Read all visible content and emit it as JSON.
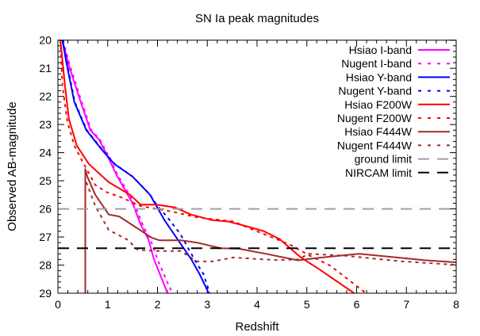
{
  "chart_data": {
    "type": "line",
    "title": "SN Ia peak magnitudes",
    "xlabel": "Redshift",
    "ylabel": "Observed AB-magnitude",
    "xlim": [
      0,
      8
    ],
    "ylim": [
      29,
      20
    ],
    "y_inverted": true,
    "grid": false,
    "legend_placement": "top-right",
    "xticks": [
      "0",
      "1",
      "2",
      "3",
      "4",
      "5",
      "6",
      "7",
      "8"
    ],
    "yticks": [
      "20",
      "21",
      "22",
      "23",
      "24",
      "25",
      "26",
      "27",
      "28",
      "29"
    ],
    "series": [
      {
        "name": "Hsiao I-band",
        "color": "#ff00ff",
        "dash": "solid",
        "points": [
          [
            0.09,
            20
          ],
          [
            0.22,
            20.9
          ],
          [
            0.43,
            22.05
          ],
          [
            0.65,
            23.2
          ],
          [
            0.83,
            23.55
          ],
          [
            0.99,
            24.1
          ],
          [
            1.18,
            24.8
          ],
          [
            1.34,
            25.3
          ],
          [
            1.5,
            25.8
          ],
          [
            1.66,
            26.55
          ],
          [
            1.82,
            27.1
          ],
          [
            1.93,
            27.8
          ],
          [
            2.09,
            28.5
          ],
          [
            2.2,
            29
          ]
        ]
      },
      {
        "name": "Nugent I-band",
        "color": "#ff00ff",
        "dash": "dotted",
        "points": [
          [
            0.1,
            20
          ],
          [
            0.24,
            20.9
          ],
          [
            0.45,
            22.05
          ],
          [
            0.67,
            23.2
          ],
          [
            0.85,
            23.55
          ],
          [
            1.01,
            24.1
          ],
          [
            1.2,
            24.8
          ],
          [
            1.37,
            25.3
          ],
          [
            1.53,
            25.8
          ],
          [
            1.7,
            26.55
          ],
          [
            1.88,
            27.2
          ],
          [
            2.0,
            27.8
          ],
          [
            2.17,
            28.5
          ],
          [
            2.3,
            29
          ]
        ]
      },
      {
        "name": "Hsiao Y-band",
        "color": "#0000ff",
        "dash": "solid",
        "points": [
          [
            0.09,
            20
          ],
          [
            0.17,
            20.8
          ],
          [
            0.33,
            22.2
          ],
          [
            0.57,
            23.2
          ],
          [
            0.86,
            23.85
          ],
          [
            1.13,
            24.4
          ],
          [
            1.5,
            24.85
          ],
          [
            1.85,
            25.5
          ],
          [
            1.98,
            25.9
          ],
          [
            2.14,
            26.4
          ],
          [
            2.41,
            27.1
          ],
          [
            2.68,
            27.8
          ],
          [
            2.84,
            28.3
          ],
          [
            3.03,
            29
          ]
        ]
      },
      {
        "name": "Nugent Y-band",
        "color": "#0000ff",
        "dash": "dotted",
        "points": [
          [
            0.1,
            20
          ],
          [
            0.18,
            20.8
          ],
          [
            0.34,
            22.2
          ],
          [
            0.58,
            23.2
          ],
          [
            0.87,
            23.85
          ],
          [
            1.14,
            24.4
          ],
          [
            1.5,
            24.85
          ],
          [
            1.85,
            25.5
          ],
          [
            2.0,
            25.9
          ],
          [
            2.2,
            26.3
          ],
          [
            2.46,
            26.9
          ],
          [
            2.79,
            27.95
          ],
          [
            2.92,
            28.3
          ],
          [
            3.05,
            29
          ]
        ]
      },
      {
        "name": "Hsiao F200W",
        "color": "#ff0000",
        "dash": "solid",
        "points": [
          [
            0.05,
            20
          ],
          [
            0.14,
            21.6
          ],
          [
            0.22,
            22.8
          ],
          [
            0.38,
            23.75
          ],
          [
            0.62,
            24.4
          ],
          [
            1.02,
            25.05
          ],
          [
            1.45,
            25.5
          ],
          [
            1.66,
            25.85
          ],
          [
            1.98,
            25.85
          ],
          [
            2.35,
            25.95
          ],
          [
            2.67,
            26.2
          ],
          [
            3.1,
            26.4
          ],
          [
            3.42,
            26.45
          ],
          [
            3.75,
            26.6
          ],
          [
            4.13,
            26.79
          ],
          [
            4.45,
            27.07
          ],
          [
            4.88,
            27.73
          ],
          [
            5.25,
            28.15
          ],
          [
            5.95,
            29
          ]
        ]
      },
      {
        "name": "Nugent F200W",
        "color": "#ff0000",
        "dash": "dotted",
        "points": [
          [
            0.05,
            20
          ],
          [
            0.09,
            21.6
          ],
          [
            0.19,
            22.9
          ],
          [
            0.33,
            23.75
          ],
          [
            0.49,
            24.3
          ],
          [
            0.75,
            25.15
          ],
          [
            0.97,
            25.4
          ],
          [
            1.29,
            25.6
          ],
          [
            1.66,
            25.9
          ],
          [
            2.3,
            26.1
          ],
          [
            2.79,
            26.3
          ],
          [
            3.53,
            26.45
          ],
          [
            3.86,
            26.7
          ],
          [
            4.66,
            27.27
          ],
          [
            5.04,
            27.65
          ],
          [
            5.47,
            28.02
          ],
          [
            6.16,
            28.96
          ]
        ]
      },
      {
        "name": "Hsiao F444W",
        "color": "#a52a2a",
        "dash": "solid",
        "points": [
          [
            0.55,
            29
          ],
          [
            0.55,
            24.58
          ],
          [
            0.59,
            24.85
          ],
          [
            0.75,
            25.5
          ],
          [
            1.02,
            26.2
          ],
          [
            1.23,
            26.27
          ],
          [
            1.56,
            26.65
          ],
          [
            1.88,
            27.02
          ],
          [
            2.04,
            27.12
          ],
          [
            2.47,
            27.12
          ],
          [
            2.79,
            27.2
          ],
          [
            3.27,
            27.4
          ],
          [
            3.64,
            27.42
          ],
          [
            4.18,
            27.6
          ],
          [
            4.82,
            27.83
          ],
          [
            5.25,
            27.74
          ],
          [
            6.05,
            27.6
          ],
          [
            6.64,
            27.7
          ],
          [
            7.39,
            27.83
          ],
          [
            8.0,
            27.9
          ]
        ]
      },
      {
        "name": "Nugent F444W",
        "color": "#a52a2a",
        "dash": "dotted",
        "points": [
          [
            0.57,
            25.05
          ],
          [
            0.75,
            25.9
          ],
          [
            1.02,
            26.75
          ],
          [
            1.4,
            27.1
          ],
          [
            1.6,
            27.45
          ],
          [
            1.93,
            27.5
          ],
          [
            2.47,
            27.5
          ],
          [
            2.79,
            27.87
          ],
          [
            3.1,
            27.87
          ],
          [
            3.53,
            27.73
          ],
          [
            3.96,
            27.78
          ],
          [
            4.39,
            27.82
          ],
          [
            4.82,
            27.8
          ],
          [
            5.04,
            27.6
          ],
          [
            5.79,
            27.67
          ],
          [
            6.86,
            27.86
          ],
          [
            8.0,
            27.99
          ]
        ]
      },
      {
        "name": "ground limit",
        "color": "#a0a0a0",
        "dash": "dashed",
        "points": [
          [
            0,
            26
          ],
          [
            8,
            26
          ]
        ]
      },
      {
        "name": "NIRCAM limit",
        "color": "#000000",
        "dash": "dashed",
        "points": [
          [
            0,
            27.4
          ],
          [
            8,
            27.4
          ]
        ]
      }
    ]
  }
}
